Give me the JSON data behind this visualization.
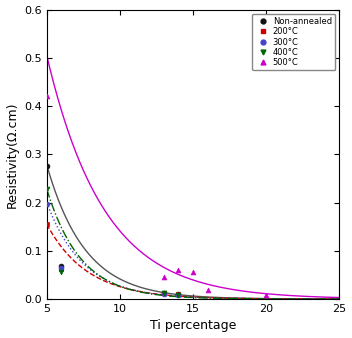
{
  "xlabel": "Ti percentage",
  "ylabel": "Resistivity(Ω.cm)",
  "xlim": [
    5,
    25
  ],
  "ylim": [
    0,
    0.6
  ],
  "xticks": [
    5,
    10,
    15,
    20,
    25
  ],
  "yticks": [
    0.0,
    0.1,
    0.2,
    0.3,
    0.4,
    0.5,
    0.6
  ],
  "series": [
    {
      "label": "Non-annealed",
      "line_color": "#555555",
      "line_style": "-",
      "marker": "o",
      "marker_color": "#111111",
      "data_x": [
        5,
        6,
        13,
        14
      ],
      "data_y": [
        0.275,
        0.068,
        0.013,
        0.01
      ],
      "fit_A": 0.278,
      "fit_k": 0.38
    },
    {
      "label": "200°C",
      "line_color": "#cc0000",
      "line_style": "--",
      "marker": "s",
      "marker_color": "#cc0000",
      "data_x": [
        5,
        6,
        13,
        14
      ],
      "data_y": [
        0.155,
        0.062,
        0.013,
        0.01
      ],
      "fit_A": 0.155,
      "fit_k": 0.36
    },
    {
      "label": "300°C",
      "line_color": "#4444cc",
      "line_style": ":",
      "marker": "o",
      "marker_color": "#4444cc",
      "data_x": [
        5,
        6,
        13,
        14
      ],
      "data_y": [
        0.198,
        0.065,
        0.01,
        0.008
      ],
      "fit_A": 0.2,
      "fit_k": 0.4
    },
    {
      "label": "400°C",
      "line_color": "#006600",
      "line_style": "-.",
      "marker": "v",
      "marker_color": "#006600",
      "data_x": [
        5,
        6,
        13,
        14
      ],
      "data_y": [
        0.228,
        0.055,
        0.013,
        0.008
      ],
      "fit_A": 0.228,
      "fit_k": 0.43
    },
    {
      "label": "500°C",
      "line_color": "#cc00cc",
      "line_style": "-",
      "marker": "^",
      "marker_color": "#cc00cc",
      "data_x": [
        5,
        13,
        14,
        15,
        16,
        20
      ],
      "data_y": [
        0.42,
        0.045,
        0.06,
        0.055,
        0.018,
        0.008
      ],
      "fit_A": 0.505,
      "fit_k": 0.255
    }
  ],
  "figsize": [
    3.52,
    3.38
  ],
  "dpi": 100
}
